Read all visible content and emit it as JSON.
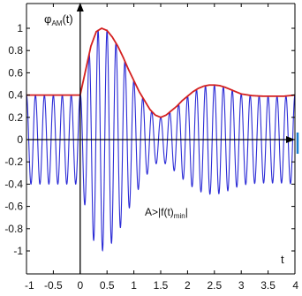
{
  "chart_data": {
    "type": "line",
    "title": "",
    "ylabel": {
      "prefix": "φ",
      "sub": "AM",
      "suffix": "(t)"
    },
    "xlabel": "t",
    "xlim": [
      -1,
      4
    ],
    "ylim": [
      -1.2,
      1.2
    ],
    "xticks": [
      "-1",
      "-0.5",
      "0",
      "0.5",
      "1",
      "1.5",
      "2",
      "2.5",
      "3",
      "3.5",
      "4"
    ],
    "yticks": [
      "1",
      "0.8",
      "0.6",
      "0.4",
      "0.2",
      "0",
      "-0.2",
      "-0.4",
      "-0.6",
      "-0.8",
      "-1"
    ],
    "grid": false,
    "annotation": {
      "prefix": "A>|f(t)",
      "sub": "min",
      "suffix": "|"
    },
    "colors": {
      "carrier": "#2b2bd6",
      "envelope": "#d42020",
      "axis": "#000000",
      "right_marker": "#1a7fd0"
    },
    "series": [
      {
        "role": "envelope",
        "x": [
          -1,
          -0.5,
          0,
          0.1,
          0.2,
          0.3,
          0.4,
          0.5,
          0.6,
          0.7,
          0.8,
          0.9,
          1.0,
          1.1,
          1.2,
          1.3,
          1.4,
          1.5,
          1.6,
          1.7,
          1.8,
          1.9,
          2.0,
          2.1,
          2.2,
          2.3,
          2.4,
          2.5,
          2.6,
          2.7,
          2.8,
          2.9,
          3.0,
          3.2,
          3.4,
          3.6,
          3.8,
          4.0
        ],
        "y": [
          0.4,
          0.4,
          0.4,
          0.62,
          0.84,
          0.97,
          1.0,
          0.98,
          0.92,
          0.84,
          0.74,
          0.63,
          0.53,
          0.43,
          0.35,
          0.27,
          0.22,
          0.2,
          0.22,
          0.26,
          0.3,
          0.35,
          0.39,
          0.43,
          0.46,
          0.48,
          0.49,
          0.49,
          0.485,
          0.47,
          0.45,
          0.43,
          0.41,
          0.395,
          0.39,
          0.39,
          0.39,
          0.4
        ]
      },
      {
        "role": "carrier",
        "frequency_hz": 6,
        "x": [
          -1,
          4
        ]
      }
    ]
  }
}
